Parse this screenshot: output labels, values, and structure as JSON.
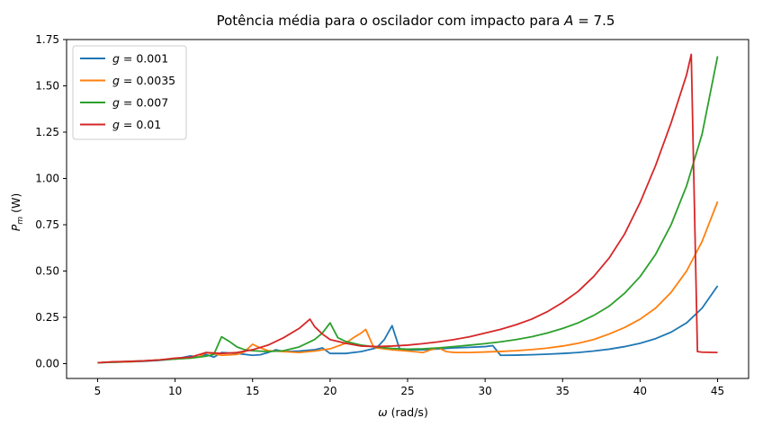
{
  "chart_data": {
    "type": "line",
    "title": "Potência média para o oscilador com impacto para A = 7.5",
    "xlabel": "ω (rad/s)",
    "ylabel": "P_m (W)",
    "xlim": [
      3.0,
      47.0
    ],
    "ylim": [
      -0.08,
      1.75
    ],
    "xticks": [
      5,
      10,
      15,
      20,
      25,
      30,
      35,
      40,
      45
    ],
    "yticks": [
      0.0,
      0.25,
      0.5,
      0.75,
      1.0,
      1.25,
      1.5,
      1.75
    ],
    "xtick_labels": [
      "5",
      "10",
      "15",
      "20",
      "25",
      "30",
      "35",
      "40",
      "45"
    ],
    "ytick_labels": [
      "0.00",
      "0.25",
      "0.50",
      "0.75",
      "1.00",
      "1.25",
      "1.50",
      "1.75"
    ],
    "grid": false,
    "legend_position": "top-left",
    "series": [
      {
        "name": "g = 0.001",
        "color": "#1f77b4",
        "x": [
          5,
          6,
          7,
          8,
          9,
          10,
          11,
          11.5,
          12,
          12.5,
          13,
          14,
          15,
          15.5,
          16,
          16.5,
          17,
          18,
          19,
          19.5,
          20,
          21,
          22,
          23,
          23.5,
          24,
          24.5,
          25,
          26,
          27,
          28,
          29,
          30,
          30.5,
          31,
          32,
          33,
          34,
          35,
          36,
          37,
          38,
          39,
          40,
          41,
          42,
          43,
          44,
          45
        ],
        "y": [
          0.005,
          0.008,
          0.01,
          0.013,
          0.018,
          0.025,
          0.042,
          0.035,
          0.05,
          0.035,
          0.06,
          0.055,
          0.045,
          0.048,
          0.06,
          0.075,
          0.065,
          0.068,
          0.075,
          0.085,
          0.055,
          0.055,
          0.065,
          0.085,
          0.13,
          0.205,
          0.075,
          0.075,
          0.075,
          0.08,
          0.085,
          0.088,
          0.092,
          0.097,
          0.045,
          0.046,
          0.048,
          0.051,
          0.055,
          0.06,
          0.068,
          0.078,
          0.092,
          0.11,
          0.135,
          0.17,
          0.22,
          0.3,
          0.42
        ]
      },
      {
        "name": "g = 0.0035",
        "color": "#ff7f0e",
        "x": [
          5,
          6,
          7,
          8,
          9,
          10,
          11,
          11.5,
          12,
          13,
          14,
          14.5,
          15,
          15.5,
          16,
          17,
          18,
          19,
          20,
          21,
          21.5,
          22,
          22.3,
          22.8,
          23,
          24,
          25,
          26,
          26.5,
          27,
          27.5,
          28,
          29,
          30,
          31,
          32,
          33,
          34,
          35,
          36,
          37,
          38,
          39,
          40,
          41,
          42,
          43,
          44,
          45
        ],
        "y": [
          0.005,
          0.008,
          0.01,
          0.015,
          0.02,
          0.025,
          0.03,
          0.035,
          0.06,
          0.045,
          0.05,
          0.065,
          0.105,
          0.085,
          0.07,
          0.065,
          0.06,
          0.068,
          0.08,
          0.11,
          0.14,
          0.165,
          0.185,
          0.09,
          0.085,
          0.075,
          0.068,
          0.06,
          0.075,
          0.085,
          0.065,
          0.06,
          0.06,
          0.063,
          0.066,
          0.07,
          0.076,
          0.084,
          0.095,
          0.11,
          0.13,
          0.16,
          0.195,
          0.24,
          0.3,
          0.385,
          0.5,
          0.66,
          0.875
        ]
      },
      {
        "name": "g = 0.007",
        "color": "#2ca02c",
        "x": [
          5,
          6,
          7,
          8,
          9,
          10,
          11,
          12,
          12.5,
          13,
          13.5,
          14,
          14.5,
          15,
          16,
          17,
          18,
          19,
          19.5,
          20,
          20.5,
          21,
          22,
          23,
          24,
          25,
          26,
          27,
          28,
          29,
          30,
          31,
          32,
          33,
          34,
          35,
          36,
          37,
          38,
          39,
          40,
          41,
          42,
          43,
          44,
          45
        ],
        "y": [
          0.005,
          0.008,
          0.012,
          0.015,
          0.02,
          0.025,
          0.03,
          0.04,
          0.05,
          0.145,
          0.12,
          0.09,
          0.075,
          0.07,
          0.065,
          0.07,
          0.09,
          0.13,
          0.165,
          0.22,
          0.14,
          0.12,
          0.1,
          0.09,
          0.082,
          0.078,
          0.08,
          0.085,
          0.092,
          0.1,
          0.108,
          0.118,
          0.13,
          0.145,
          0.165,
          0.19,
          0.22,
          0.26,
          0.31,
          0.38,
          0.47,
          0.59,
          0.75,
          0.96,
          1.24,
          1.66
        ]
      },
      {
        "name": "g = 0.01",
        "color": "#d62728",
        "x": [
          5,
          6,
          7,
          8,
          9,
          10,
          11,
          12,
          13,
          14,
          15,
          16,
          17,
          18,
          18.7,
          19,
          19.5,
          20,
          21,
          22,
          23,
          24,
          25,
          26,
          27,
          28,
          29,
          30,
          31,
          32,
          33,
          34,
          35,
          36,
          37,
          38,
          39,
          40,
          41,
          42,
          43,
          43.3,
          43.7,
          44,
          45
        ],
        "y": [
          0.005,
          0.01,
          0.012,
          0.015,
          0.02,
          0.03,
          0.035,
          0.06,
          0.055,
          0.06,
          0.075,
          0.1,
          0.14,
          0.19,
          0.24,
          0.2,
          0.16,
          0.13,
          0.11,
          0.095,
          0.092,
          0.095,
          0.1,
          0.108,
          0.118,
          0.13,
          0.145,
          0.165,
          0.185,
          0.21,
          0.24,
          0.28,
          0.33,
          0.39,
          0.47,
          0.57,
          0.7,
          0.87,
          1.07,
          1.3,
          1.56,
          1.67,
          0.065,
          0.062,
          0.06
        ]
      }
    ]
  }
}
